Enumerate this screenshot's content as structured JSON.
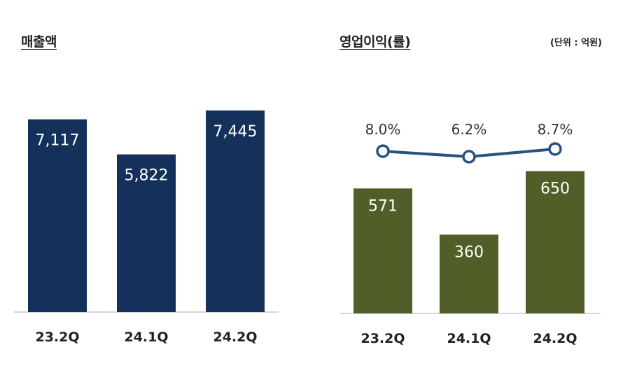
{
  "chart_data": [
    {
      "type": "bar",
      "title": "매출액",
      "categories": [
        "23.2Q",
        "24.1Q",
        "24.2Q"
      ],
      "values": [
        7117,
        5822,
        7445
      ],
      "value_labels": [
        "7,117",
        "5,822",
        "7,445"
      ],
      "ylim": [
        0,
        7700
      ],
      "grid": false,
      "colors": {
        "bar": "#14305b",
        "label": "#ffffff"
      }
    },
    {
      "type": "bar",
      "title": "영업이익(률)",
      "unit": "(단위 : 억원)",
      "categories": [
        "23.2Q",
        "24.1Q",
        "24.2Q"
      ],
      "values": [
        571,
        360,
        650
      ],
      "value_labels": [
        "571",
        "360",
        "650"
      ],
      "ylim": [
        0,
        700
      ],
      "grid": false,
      "colors": {
        "bar": "#4f5f27",
        "label": "#ffffff",
        "line": "#2a5184"
      },
      "line_series": {
        "type": "line",
        "values": [
          8.0,
          6.2,
          8.7
        ],
        "value_labels": [
          "8.0%",
          "6.2%",
          "8.7%"
        ],
        "marker": "hollow-circle"
      }
    }
  ]
}
